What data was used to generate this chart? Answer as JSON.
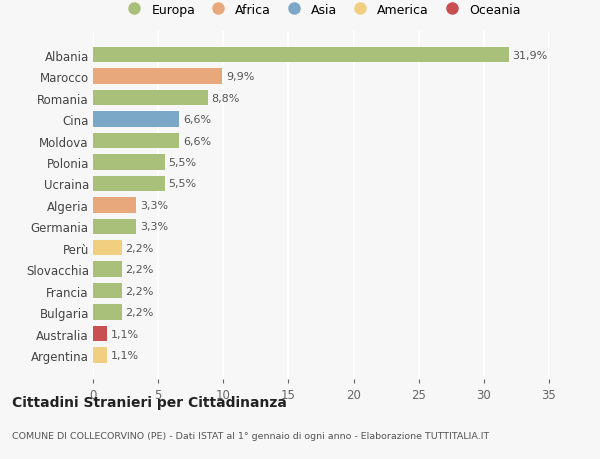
{
  "categories": [
    "Albania",
    "Marocco",
    "Romania",
    "Cina",
    "Moldova",
    "Polonia",
    "Ucraina",
    "Algeria",
    "Germania",
    "Perù",
    "Slovacchia",
    "Francia",
    "Bulgaria",
    "Australia",
    "Argentina"
  ],
  "values": [
    31.9,
    9.9,
    8.8,
    6.6,
    6.6,
    5.5,
    5.5,
    3.3,
    3.3,
    2.2,
    2.2,
    2.2,
    2.2,
    1.1,
    1.1
  ],
  "labels": [
    "31,9%",
    "9,9%",
    "8,8%",
    "6,6%",
    "6,6%",
    "5,5%",
    "5,5%",
    "3,3%",
    "3,3%",
    "2,2%",
    "2,2%",
    "2,2%",
    "2,2%",
    "1,1%",
    "1,1%"
  ],
  "colors": [
    "#a8c07a",
    "#e8a87c",
    "#a8c07a",
    "#7ca8c8",
    "#a8c07a",
    "#a8c07a",
    "#a8c07a",
    "#e8a87c",
    "#a8c07a",
    "#f0d080",
    "#a8c07a",
    "#a8c07a",
    "#a8c07a",
    "#c85050",
    "#f0d080"
  ],
  "legend_labels": [
    "Europa",
    "Africa",
    "Asia",
    "America",
    "Oceania"
  ],
  "legend_colors": [
    "#a8c07a",
    "#e8a87c",
    "#7ca8c8",
    "#f0d080",
    "#c85050"
  ],
  "title": "Cittadini Stranieri per Cittadinanza",
  "subtitle": "COMUNE DI COLLECORVINO (PE) - Dati ISTAT al 1° gennaio di ogni anno - Elaborazione TUTTITALIA.IT",
  "xlim": [
    0,
    35
  ],
  "xticks": [
    0,
    5,
    10,
    15,
    20,
    25,
    30,
    35
  ],
  "background_color": "#f7f7f7",
  "plot_background": "#f7f7f7",
  "grid_color": "#ffffff",
  "bar_height": 0.72
}
